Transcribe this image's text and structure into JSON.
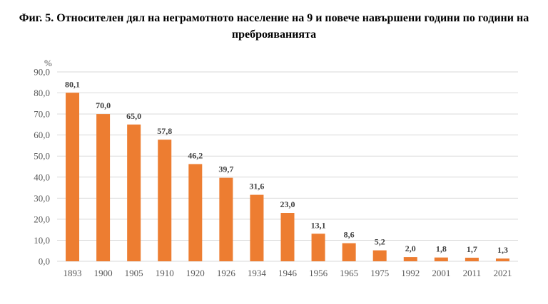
{
  "chart_data": {
    "type": "bar",
    "title": "Фиг. 5. Относителен дял на неграмотното население на 9 и повече навършени години по години на преброяванията",
    "ylabel": "%",
    "categories": [
      "1893",
      "1900",
      "1905",
      "1910",
      "1920",
      "1926",
      "1934",
      "1946",
      "1956",
      "1965",
      "1975",
      "1992",
      "2001",
      "2011",
      "2021"
    ],
    "values": [
      80.1,
      70.0,
      65.0,
      57.8,
      46.2,
      39.7,
      31.6,
      23.0,
      13.1,
      8.6,
      5.2,
      2.0,
      1.8,
      1.7,
      1.3
    ],
    "data_labels": [
      "80,1",
      "70,0",
      "65,0",
      "57,8",
      "46,2",
      "39,7",
      "31,6",
      "23,0",
      "13,1",
      "8,6",
      "5,2",
      "2,0",
      "1,8",
      "1,7",
      "1,3"
    ],
    "yticks": [
      "0,0",
      "10,0",
      "20,0",
      "30,0",
      "40,0",
      "50,0",
      "60,0",
      "70,0",
      "80,0",
      "90,0"
    ],
    "ylim": [
      0,
      90
    ],
    "grid": true,
    "bar_color": "#ED7D31",
    "grid_color": "#D9D9D9"
  }
}
